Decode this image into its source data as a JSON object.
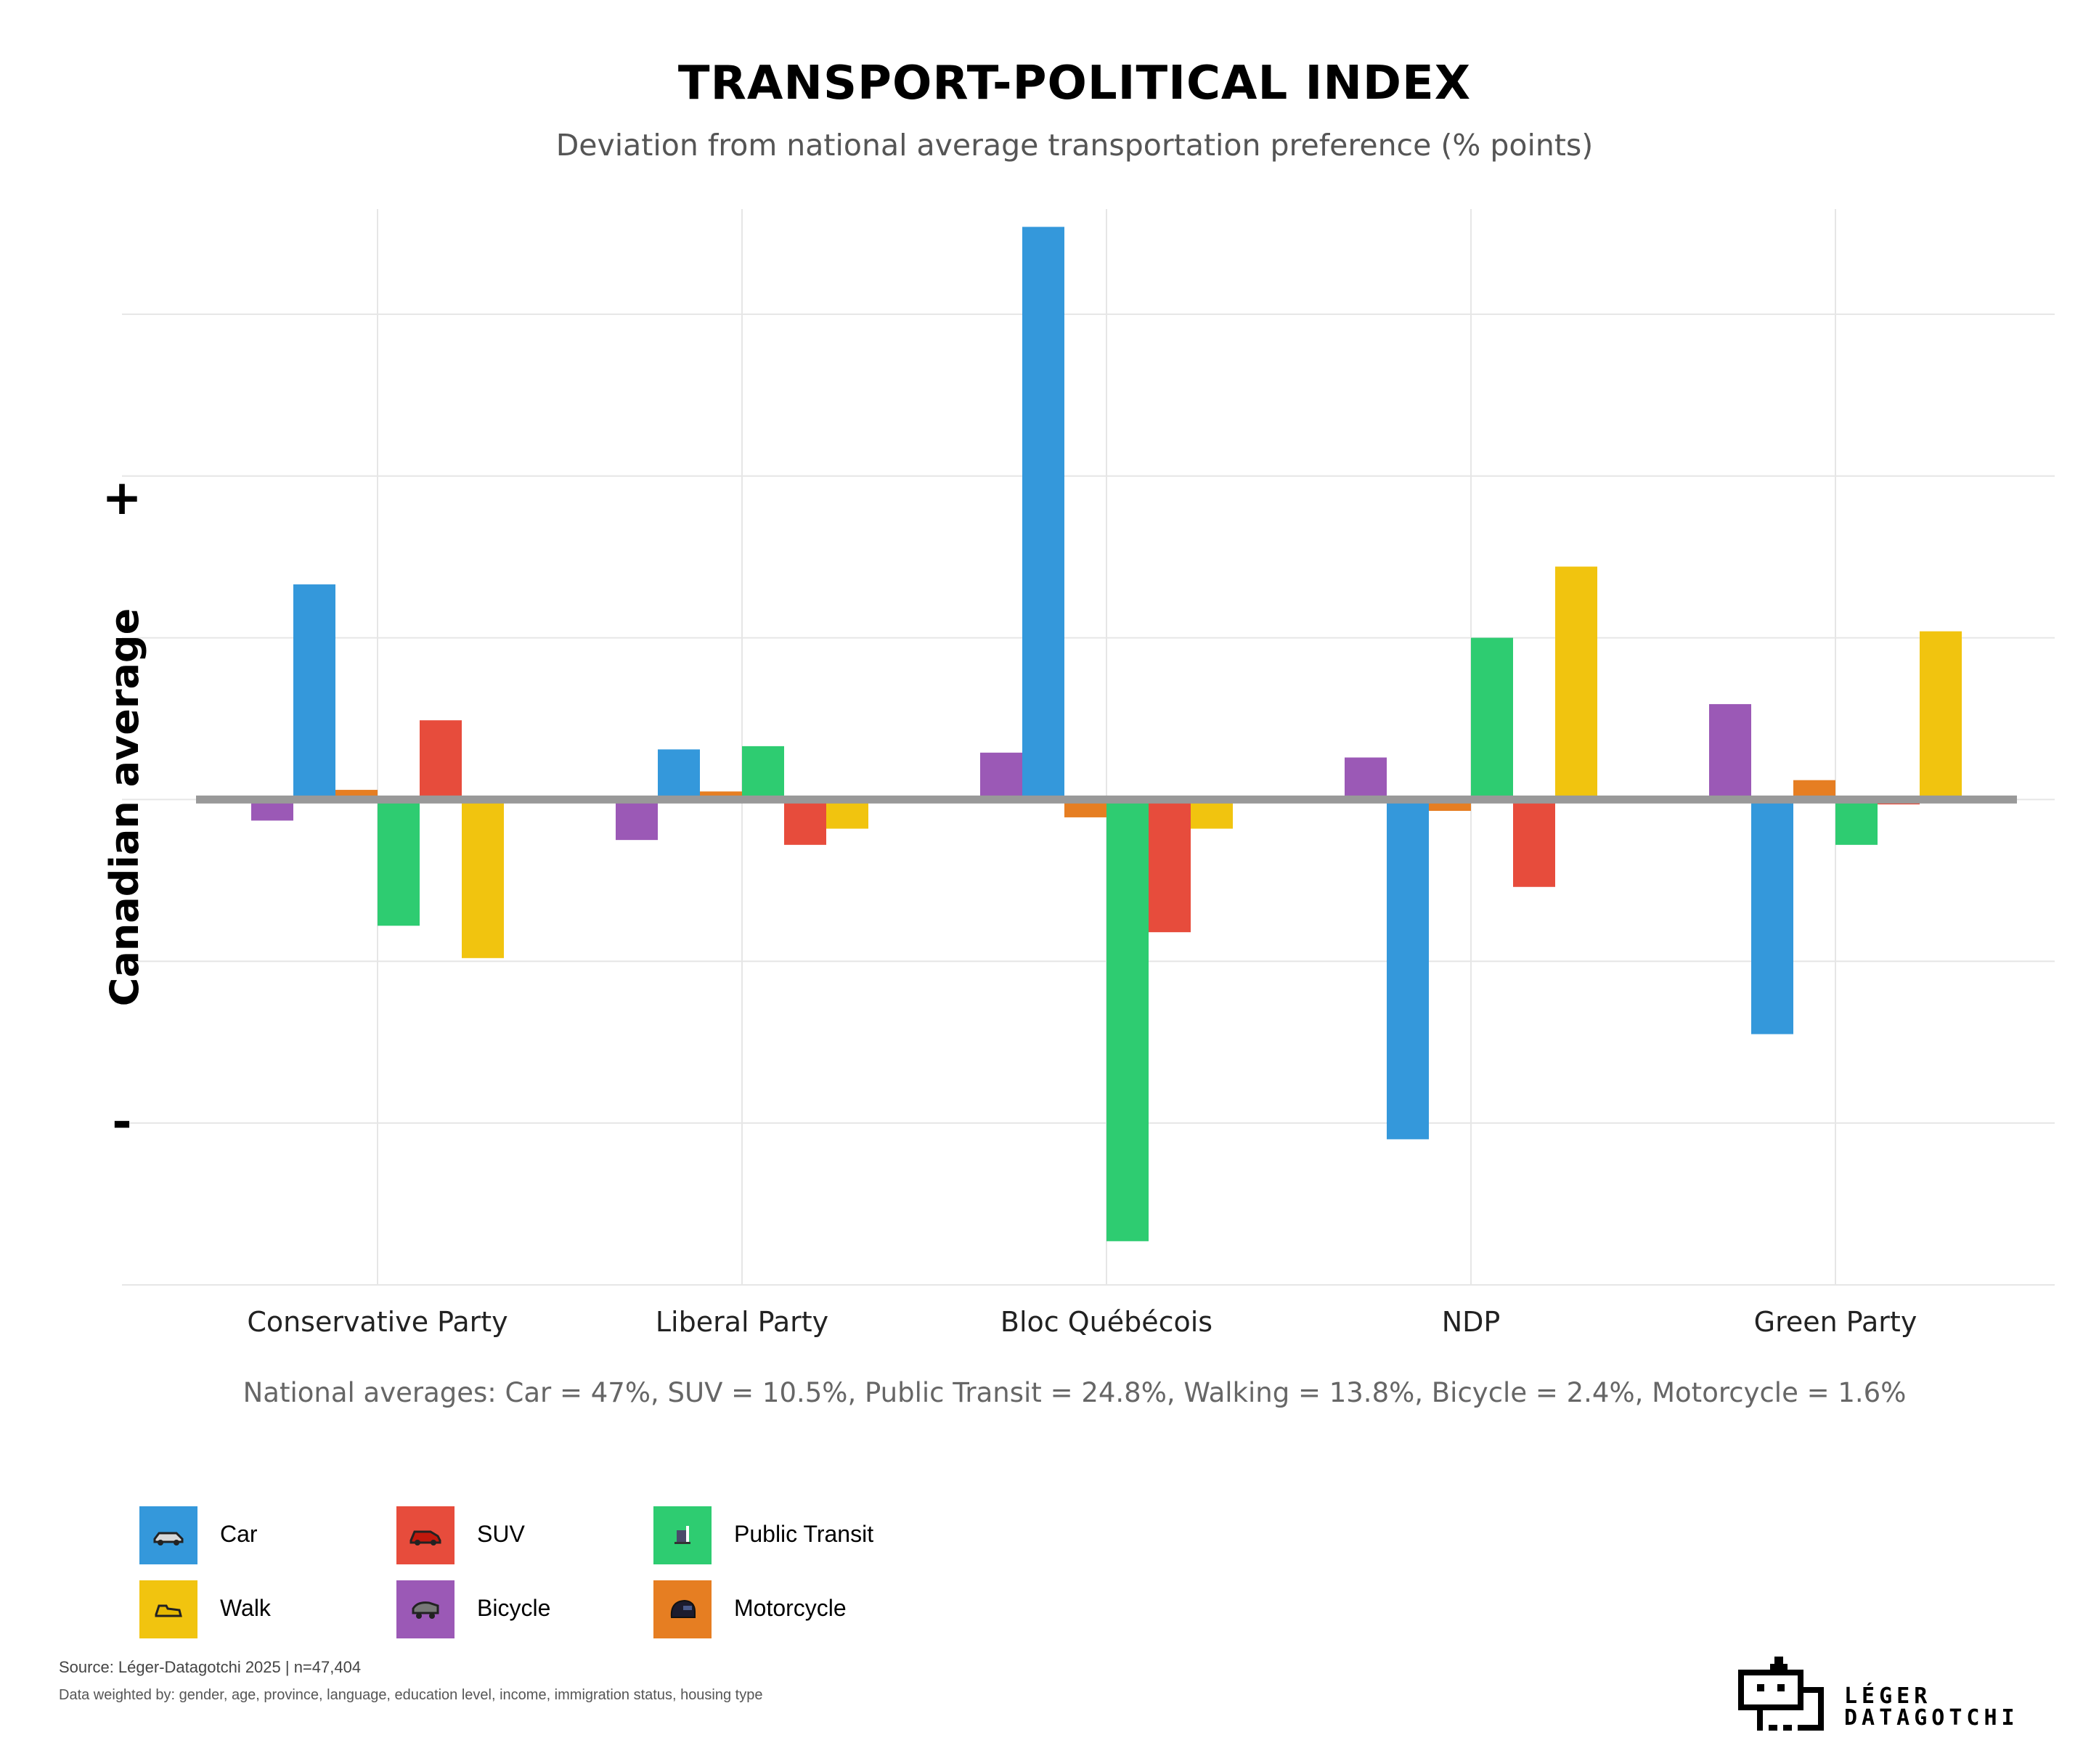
{
  "header": {
    "title": "TRANSPORT-POLITICAL INDEX",
    "subtitle": "Deviation from national average transportation preference (% points)"
  },
  "axis": {
    "y_label": "Canadian average",
    "plus_label": "+",
    "minus_label": "-"
  },
  "note": "National averages: Car = 47%, SUV = 10.5%, Public Transit = 24.8%, Walking = 13.8%, Bicycle = 2.4%, Motorcycle = 1.6%",
  "legend": [
    {
      "label": "Car",
      "icon": "car-icon"
    },
    {
      "label": "SUV",
      "icon": "suv-icon"
    },
    {
      "label": "Public Transit",
      "icon": "transit-icon"
    },
    {
      "label": "Walk",
      "icon": "shoe-icon"
    },
    {
      "label": "Bicycle",
      "icon": "bicycle-icon"
    },
    {
      "label": "Motorcycle",
      "icon": "helmet-icon"
    }
  ],
  "footer": {
    "source": "Source: Léger-Datagotchi 2025 | n=47,404",
    "weighting": "Data weighted by: gender, age, province, language, education level, income, immigration status, housing type"
  },
  "logo": {
    "line1": "LÉGER",
    "line2": "DATAGOTCHI"
  },
  "chart_data": {
    "type": "bar",
    "title": "TRANSPORT-POLITICAL INDEX",
    "subtitle": "Deviation from national average transportation preference (% points)",
    "ylabel": "Canadian average",
    "ylim": [
      -3.0,
      3.65
    ],
    "yticks": [
      -3,
      -2,
      -1,
      0,
      1,
      2,
      3
    ],
    "y_tick_labels": {
      "2": "+",
      "-2": "-"
    },
    "grid": true,
    "legend_position": "bottom-left",
    "categories": [
      "Conservative Party",
      "Liberal Party",
      "Bloc Québécois",
      "NDP",
      "Green Party"
    ],
    "series": [
      {
        "name": "Bicycle",
        "color": "#9b59b6",
        "values": [
          -0.13,
          -0.25,
          0.29,
          0.26,
          0.59
        ]
      },
      {
        "name": "Car",
        "color": "#3498db",
        "values": [
          1.33,
          0.31,
          3.54,
          -2.1,
          -1.45
        ]
      },
      {
        "name": "Motorcycle",
        "color": "#e67e22",
        "values": [
          0.06,
          0.05,
          -0.11,
          -0.07,
          0.12
        ]
      },
      {
        "name": "Public Transit",
        "color": "#2ecc71",
        "values": [
          -0.78,
          0.33,
          -2.73,
          1.0,
          -0.28
        ]
      },
      {
        "name": "SUV",
        "color": "#e74c3c",
        "values": [
          0.49,
          -0.28,
          -0.82,
          -0.54,
          -0.03
        ]
      },
      {
        "name": "Walk",
        "color": "#f1c40f",
        "values": [
          -0.98,
          -0.18,
          -0.18,
          1.44,
          1.04
        ]
      }
    ]
  }
}
